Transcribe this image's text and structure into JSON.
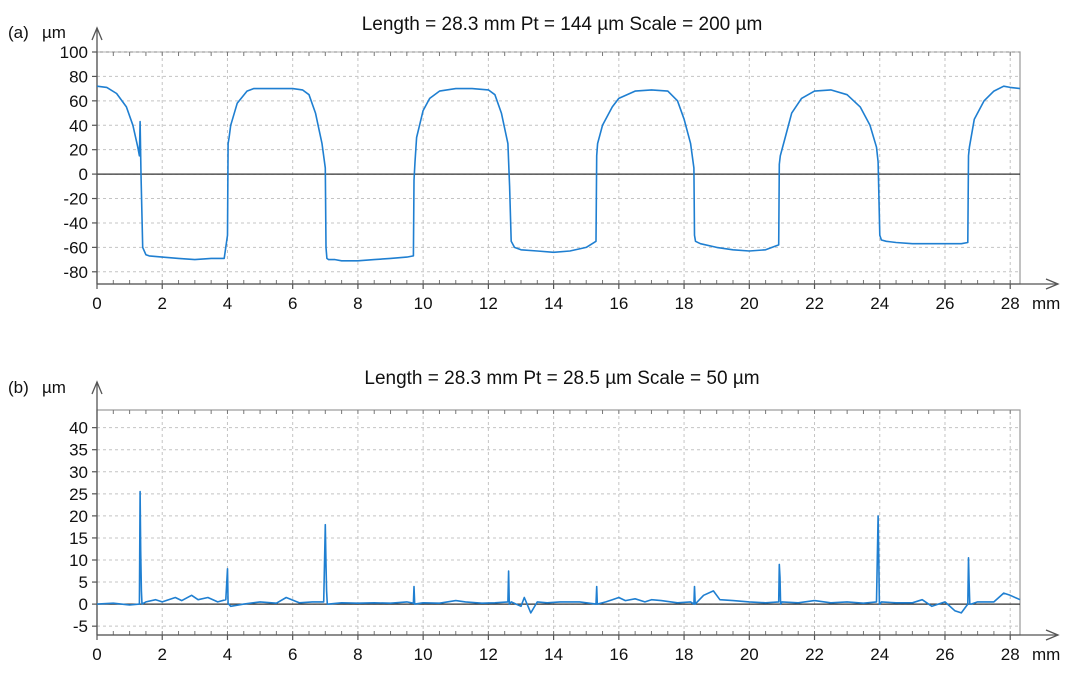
{
  "chart_data": [
    {
      "type": "line",
      "panel_label": "(a)",
      "title": "Length = 28.3 mm Pt = 144 µm Scale = 200 µm",
      "ylabel": "µm",
      "xlabel": "mm",
      "xlim": [
        0,
        28.3
      ],
      "ylim": [
        -90,
        100
      ],
      "x_ticks": [
        0,
        2,
        4,
        6,
        8,
        10,
        12,
        14,
        16,
        18,
        20,
        22,
        24,
        26,
        28
      ],
      "y_ticks": [
        -80,
        -60,
        -40,
        -20,
        0,
        20,
        40,
        60,
        80,
        100
      ],
      "grid": true,
      "line_color": "#1f7fd1",
      "series": [
        {
          "x": [
            0,
            0.3,
            0.6,
            0.9,
            1.1,
            1.25,
            1.3,
            1.32,
            1.35,
            1.4,
            1.5,
            1.6,
            2.0,
            2.5,
            3.0,
            3.5,
            3.9,
            4.0,
            4.02,
            4.05,
            4.1,
            4.3,
            4.6,
            4.8,
            5.0,
            5.5,
            6.0,
            6.3,
            6.5,
            6.7,
            6.9,
            7.0,
            7.02,
            7.05,
            7.1,
            7.3,
            7.5,
            8.0,
            8.5,
            9.0,
            9.5,
            9.7,
            9.72,
            9.75,
            9.8,
            10.0,
            10.2,
            10.5,
            11.0,
            11.5,
            12.0,
            12.2,
            12.4,
            12.6,
            12.65,
            12.7,
            12.8,
            13.0,
            13.5,
            14.0,
            14.5,
            15.0,
            15.3,
            15.32,
            15.35,
            15.5,
            15.8,
            16.0,
            16.5,
            17.0,
            17.5,
            17.8,
            18.0,
            18.2,
            18.3,
            18.32,
            18.35,
            18.5,
            19.0,
            19.5,
            20.0,
            20.5,
            20.9,
            20.92,
            20.95,
            21.1,
            21.3,
            21.6,
            22.0,
            22.5,
            23.0,
            23.4,
            23.7,
            23.9,
            23.95,
            24.0,
            24.05,
            24.2,
            24.5,
            25.0,
            25.5,
            26.0,
            26.5,
            26.7,
            26.72,
            26.75,
            26.9,
            27.2,
            27.5,
            27.8,
            28.0,
            28.3
          ],
          "y": [
            72,
            71,
            66,
            55,
            40,
            22,
            15,
            43,
            0,
            -60,
            -66,
            -67,
            -68,
            -69,
            -70,
            -69,
            -69,
            -50,
            25,
            30,
            40,
            58,
            68,
            70,
            70,
            70,
            70,
            69,
            65,
            50,
            25,
            5,
            -60,
            -69,
            -70,
            -70,
            -71,
            -71,
            -70,
            -69,
            -68,
            -67,
            -5,
            10,
            30,
            52,
            62,
            68,
            70,
            70,
            69,
            65,
            50,
            25,
            -10,
            -55,
            -60,
            -62,
            -63,
            -64,
            -63,
            -60,
            -55,
            15,
            25,
            40,
            55,
            62,
            68,
            69,
            68,
            60,
            45,
            25,
            5,
            -50,
            -55,
            -57,
            -60,
            -62,
            -63,
            -62,
            -58,
            8,
            15,
            30,
            50,
            62,
            68,
            69,
            65,
            55,
            40,
            22,
            10,
            -50,
            -54,
            -55,
            -56,
            -57,
            -57,
            -57,
            -57,
            -56,
            15,
            22,
            45,
            60,
            68,
            72,
            71,
            70
          ]
        }
      ]
    },
    {
      "type": "line",
      "panel_label": "(b)",
      "title": "Length = 28.3 mm Pt = 28.5 µm Scale = 50 µm",
      "ylabel": "µm",
      "xlabel": "mm",
      "xlim": [
        0,
        28.3
      ],
      "ylim": [
        -7,
        44
      ],
      "x_ticks": [
        0,
        2,
        4,
        6,
        8,
        10,
        12,
        14,
        16,
        18,
        20,
        22,
        24,
        26,
        28
      ],
      "y_ticks": [
        -5,
        0,
        5,
        10,
        15,
        20,
        25,
        30,
        35,
        40
      ],
      "grid": true,
      "line_color": "#1f7fd1",
      "series": [
        {
          "x": [
            0,
            0.5,
            1.0,
            1.3,
            1.32,
            1.34,
            1.36,
            1.38,
            1.5,
            1.8,
            2.0,
            2.4,
            2.6,
            2.9,
            3.1,
            3.4,
            3.7,
            3.95,
            4.0,
            4.02,
            4.04,
            4.1,
            4.5,
            5.0,
            5.5,
            5.8,
            6.2,
            6.6,
            6.95,
            7.0,
            7.02,
            7.04,
            7.06,
            7.1,
            7.5,
            8.0,
            8.5,
            9.0,
            9.5,
            9.7,
            9.72,
            9.74,
            10.0,
            10.5,
            11.0,
            11.3,
            11.8,
            12.2,
            12.6,
            12.62,
            12.64,
            12.7,
            13.0,
            13.1,
            13.3,
            13.5,
            13.8,
            14.2,
            14.8,
            15.3,
            15.32,
            15.34,
            15.6,
            15.8,
            16.0,
            16.2,
            16.5,
            16.8,
            17.0,
            17.3,
            17.8,
            18.2,
            18.3,
            18.32,
            18.34,
            18.6,
            18.9,
            19.1,
            19.5,
            20.0,
            20.5,
            20.9,
            20.92,
            20.94,
            20.96,
            21.0,
            21.5,
            22.0,
            22.5,
            23.0,
            23.5,
            23.9,
            23.95,
            23.97,
            23.99,
            24.0,
            24.05,
            24.5,
            25.0,
            25.3,
            25.6,
            26.0,
            26.3,
            26.5,
            26.7,
            26.72,
            26.74,
            26.76,
            26.8,
            27.0,
            27.5,
            27.8,
            28.0,
            28.3
          ],
          "y": [
            0,
            0.2,
            -0.2,
            0,
            25.5,
            12,
            3,
            0,
            0.5,
            1.0,
            0.5,
            1.5,
            0.8,
            2.0,
            1.0,
            1.5,
            0.5,
            1.0,
            8,
            0,
            0,
            -0.5,
            0,
            0.5,
            0.2,
            1.5,
            0.3,
            0.5,
            0.5,
            18,
            9,
            3,
            0,
            0,
            0.3,
            0.2,
            0.3,
            0.2,
            0.5,
            0.2,
            4,
            0,
            0.3,
            0.2,
            0.8,
            0.5,
            0.2,
            0.3,
            0.5,
            7.5,
            0,
            0.5,
            -0.5,
            1.5,
            -2,
            0.5,
            0.3,
            0.5,
            0.5,
            0,
            4,
            0,
            0.5,
            1.0,
            1.5,
            0.8,
            1.2,
            0.5,
            1.0,
            0.8,
            0.3,
            0.5,
            0,
            4,
            0,
            2.0,
            3.0,
            1.0,
            0.8,
            0.5,
            0.3,
            0.5,
            9,
            6,
            0,
            0.5,
            0.3,
            0.8,
            0.3,
            0.5,
            0.2,
            0.5,
            20,
            10,
            0,
            0,
            0.5,
            0.3,
            0.3,
            1.0,
            -0.5,
            0.5,
            -1.5,
            -2,
            0,
            10.5,
            5,
            0,
            0,
            0.5,
            0.5,
            2.5,
            2.0,
            1.0
          ]
        }
      ]
    }
  ]
}
